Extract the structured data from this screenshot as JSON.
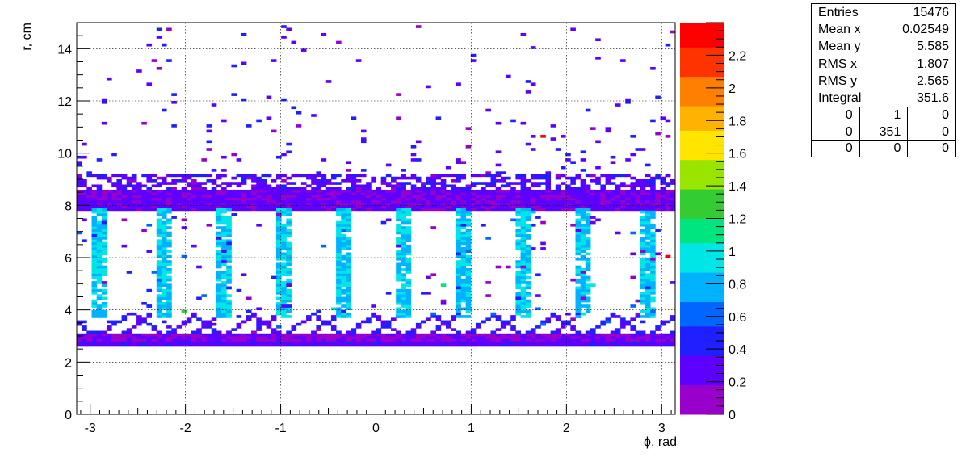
{
  "chart_data": {
    "type": "heatmap",
    "title": "",
    "xlabel": "ϕ, rad",
    "ylabel": "r, cm",
    "xlim": [
      -3.1416,
      3.1416
    ],
    "ylim": [
      0,
      15
    ],
    "x_ticks": [
      -3,
      -2,
      -1,
      0,
      1,
      2,
      3
    ],
    "y_ticks": [
      0,
      2,
      4,
      6,
      8,
      10,
      12,
      14
    ],
    "color_scale": {
      "min": 0,
      "max": 2.4,
      "ticks": [
        0,
        0.2,
        0.4,
        0.6,
        0.8,
        1,
        1.2,
        1.4,
        1.6,
        1.8,
        2,
        2.2
      ],
      "tick_labels": [
        "0",
        "0.2",
        "0.4",
        "0.6",
        "0.8",
        "1",
        "1.2",
        "1.4",
        "1.6",
        "1.8",
        "2",
        "2.2"
      ],
      "palette": [
        "#9900cc",
        "#5e00ff",
        "#1f1fff",
        "#0066ff",
        "#00b2ff",
        "#00e5e5",
        "#00e57f",
        "#33cc33",
        "#99e500",
        "#ffe500",
        "#ffb200",
        "#ff7f00",
        "#ff3300",
        "#ff0000"
      ]
    },
    "grid": true,
    "sector_centers_phi": [
      -2.93,
      -2.21,
      -1.6,
      -0.98,
      -0.33,
      0.29,
      0.92,
      1.56,
      2.19,
      2.83
    ],
    "bands": [
      {
        "r_min": 2.6,
        "r_max": 2.8,
        "value": 0.25
      },
      {
        "r_min": 2.8,
        "r_max": 3.1,
        "value": 0.15
      },
      {
        "r_min": 7.8,
        "r_max": 8.0,
        "value": 0.2
      },
      {
        "r_min": 8.0,
        "r_max": 8.6,
        "value": 0.18
      }
    ],
    "hot_cells": [
      {
        "phi": 1.77,
        "r": 10.7,
        "value": 2.3
      },
      {
        "phi": 3.07,
        "r": 6.1,
        "value": 2.35
      },
      {
        "phi": -2.03,
        "r": 3.9,
        "value": 1.3
      },
      {
        "phi": 0.71,
        "r": 4.9,
        "value": 1.1
      },
      {
        "phi": -0.43,
        "r": 4.1,
        "value": 0.9
      },
      {
        "phi": 1.63,
        "r": 7.7,
        "value": 0.85
      },
      {
        "phi": 2.29,
        "r": 4.9,
        "value": 0.9
      }
    ]
  },
  "stats_box": {
    "rows": [
      {
        "label": "Entries",
        "value": "15476"
      },
      {
        "label": "Mean x",
        "value": "0.02549"
      },
      {
        "label": "Mean y",
        "value": "5.585"
      },
      {
        "label": "RMS x",
        "value": "1.807"
      },
      {
        "label": "RMS y",
        "value": "2.565"
      },
      {
        "label": "Integral",
        "value": "351.6"
      }
    ],
    "grid": [
      [
        "0",
        "1",
        "0"
      ],
      [
        "0",
        "351",
        "0"
      ],
      [
        "0",
        "0",
        "0"
      ]
    ]
  }
}
